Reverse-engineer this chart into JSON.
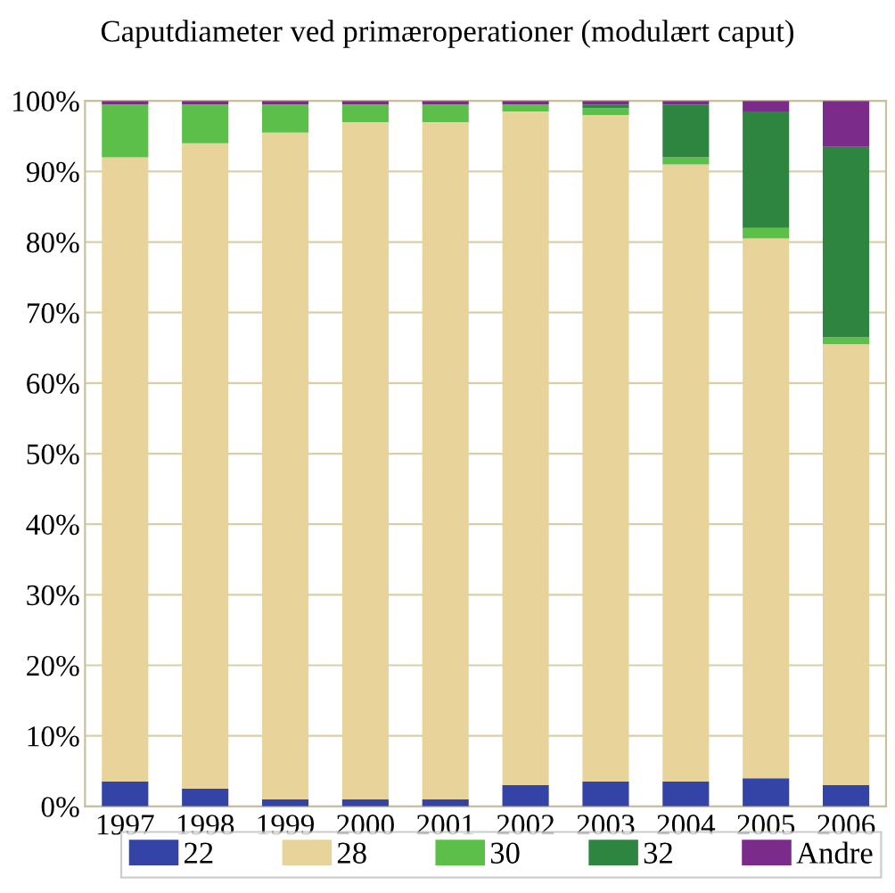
{
  "chart_data": {
    "type": "bar",
    "title": "Caputdiameter ved primæroperationer (modulært caput)",
    "categories": [
      "1997",
      "1998",
      "1999",
      "2000",
      "2001",
      "2002",
      "2003",
      "2004",
      "2005",
      "2006"
    ],
    "stacked": true,
    "series": [
      {
        "name": "22",
        "color": "#3344a6",
        "values": [
          3.5,
          2.5,
          1,
          1,
          1,
          3,
          3.5,
          3.5,
          4,
          3
        ]
      },
      {
        "name": "28",
        "color": "#e8d49a",
        "values": [
          88.5,
          91.5,
          94.5,
          96,
          96,
          95.5,
          94.5,
          87.5,
          76.5,
          62.5
        ]
      },
      {
        "name": "30",
        "color": "#5cbf4a",
        "values": [
          7.5,
          5.5,
          4,
          2.5,
          2.5,
          1,
          1,
          1,
          1.5,
          1
        ]
      },
      {
        "name": "32",
        "color": "#2e8540",
        "values": [
          0,
          0,
          0,
          0,
          0,
          0,
          0.5,
          7.5,
          16.5,
          27
        ]
      },
      {
        "name": "Andre",
        "color": "#7b2b8a",
        "values": [
          0.5,
          0.5,
          0.5,
          0.5,
          0.5,
          0.5,
          0.5,
          0.5,
          1.5,
          6.5
        ]
      }
    ],
    "ylim": [
      0,
      100
    ],
    "yticks": [
      {
        "value": 0,
        "label": "0%"
      },
      {
        "value": 10,
        "label": "10%"
      },
      {
        "value": 20,
        "label": "20%"
      },
      {
        "value": 30,
        "label": "30%"
      },
      {
        "value": 40,
        "label": "40%"
      },
      {
        "value": 50,
        "label": "50%"
      },
      {
        "value": 60,
        "label": "60%"
      },
      {
        "value": 70,
        "label": "70%"
      },
      {
        "value": 80,
        "label": "80%"
      },
      {
        "value": 90,
        "label": "90%"
      },
      {
        "value": 100,
        "label": "100%"
      }
    ],
    "grid": "y",
    "legend": "bottom"
  }
}
